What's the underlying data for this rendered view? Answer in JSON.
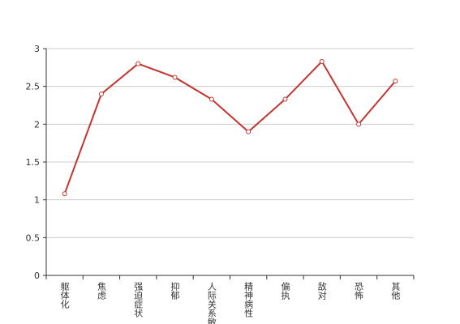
{
  "chart_data": {
    "type": "line",
    "categories": [
      "躯体化",
      "焦虑",
      "强迫症状",
      "抑郁",
      "人际关系敏感",
      "精神病性",
      "偏执",
      "敌对",
      "恐怖",
      "其他"
    ],
    "series": [
      {
        "color": "#c23531",
        "values": [
          1.08,
          2.4,
          2.8,
          2.62,
          2.33,
          1.9,
          2.33,
          2.83,
          2.0,
          2.57
        ]
      }
    ],
    "ylim": [
      0,
      3
    ],
    "yticks": [
      0,
      0.5,
      1,
      1.5,
      2,
      2.5,
      3
    ],
    "grid": true
  }
}
